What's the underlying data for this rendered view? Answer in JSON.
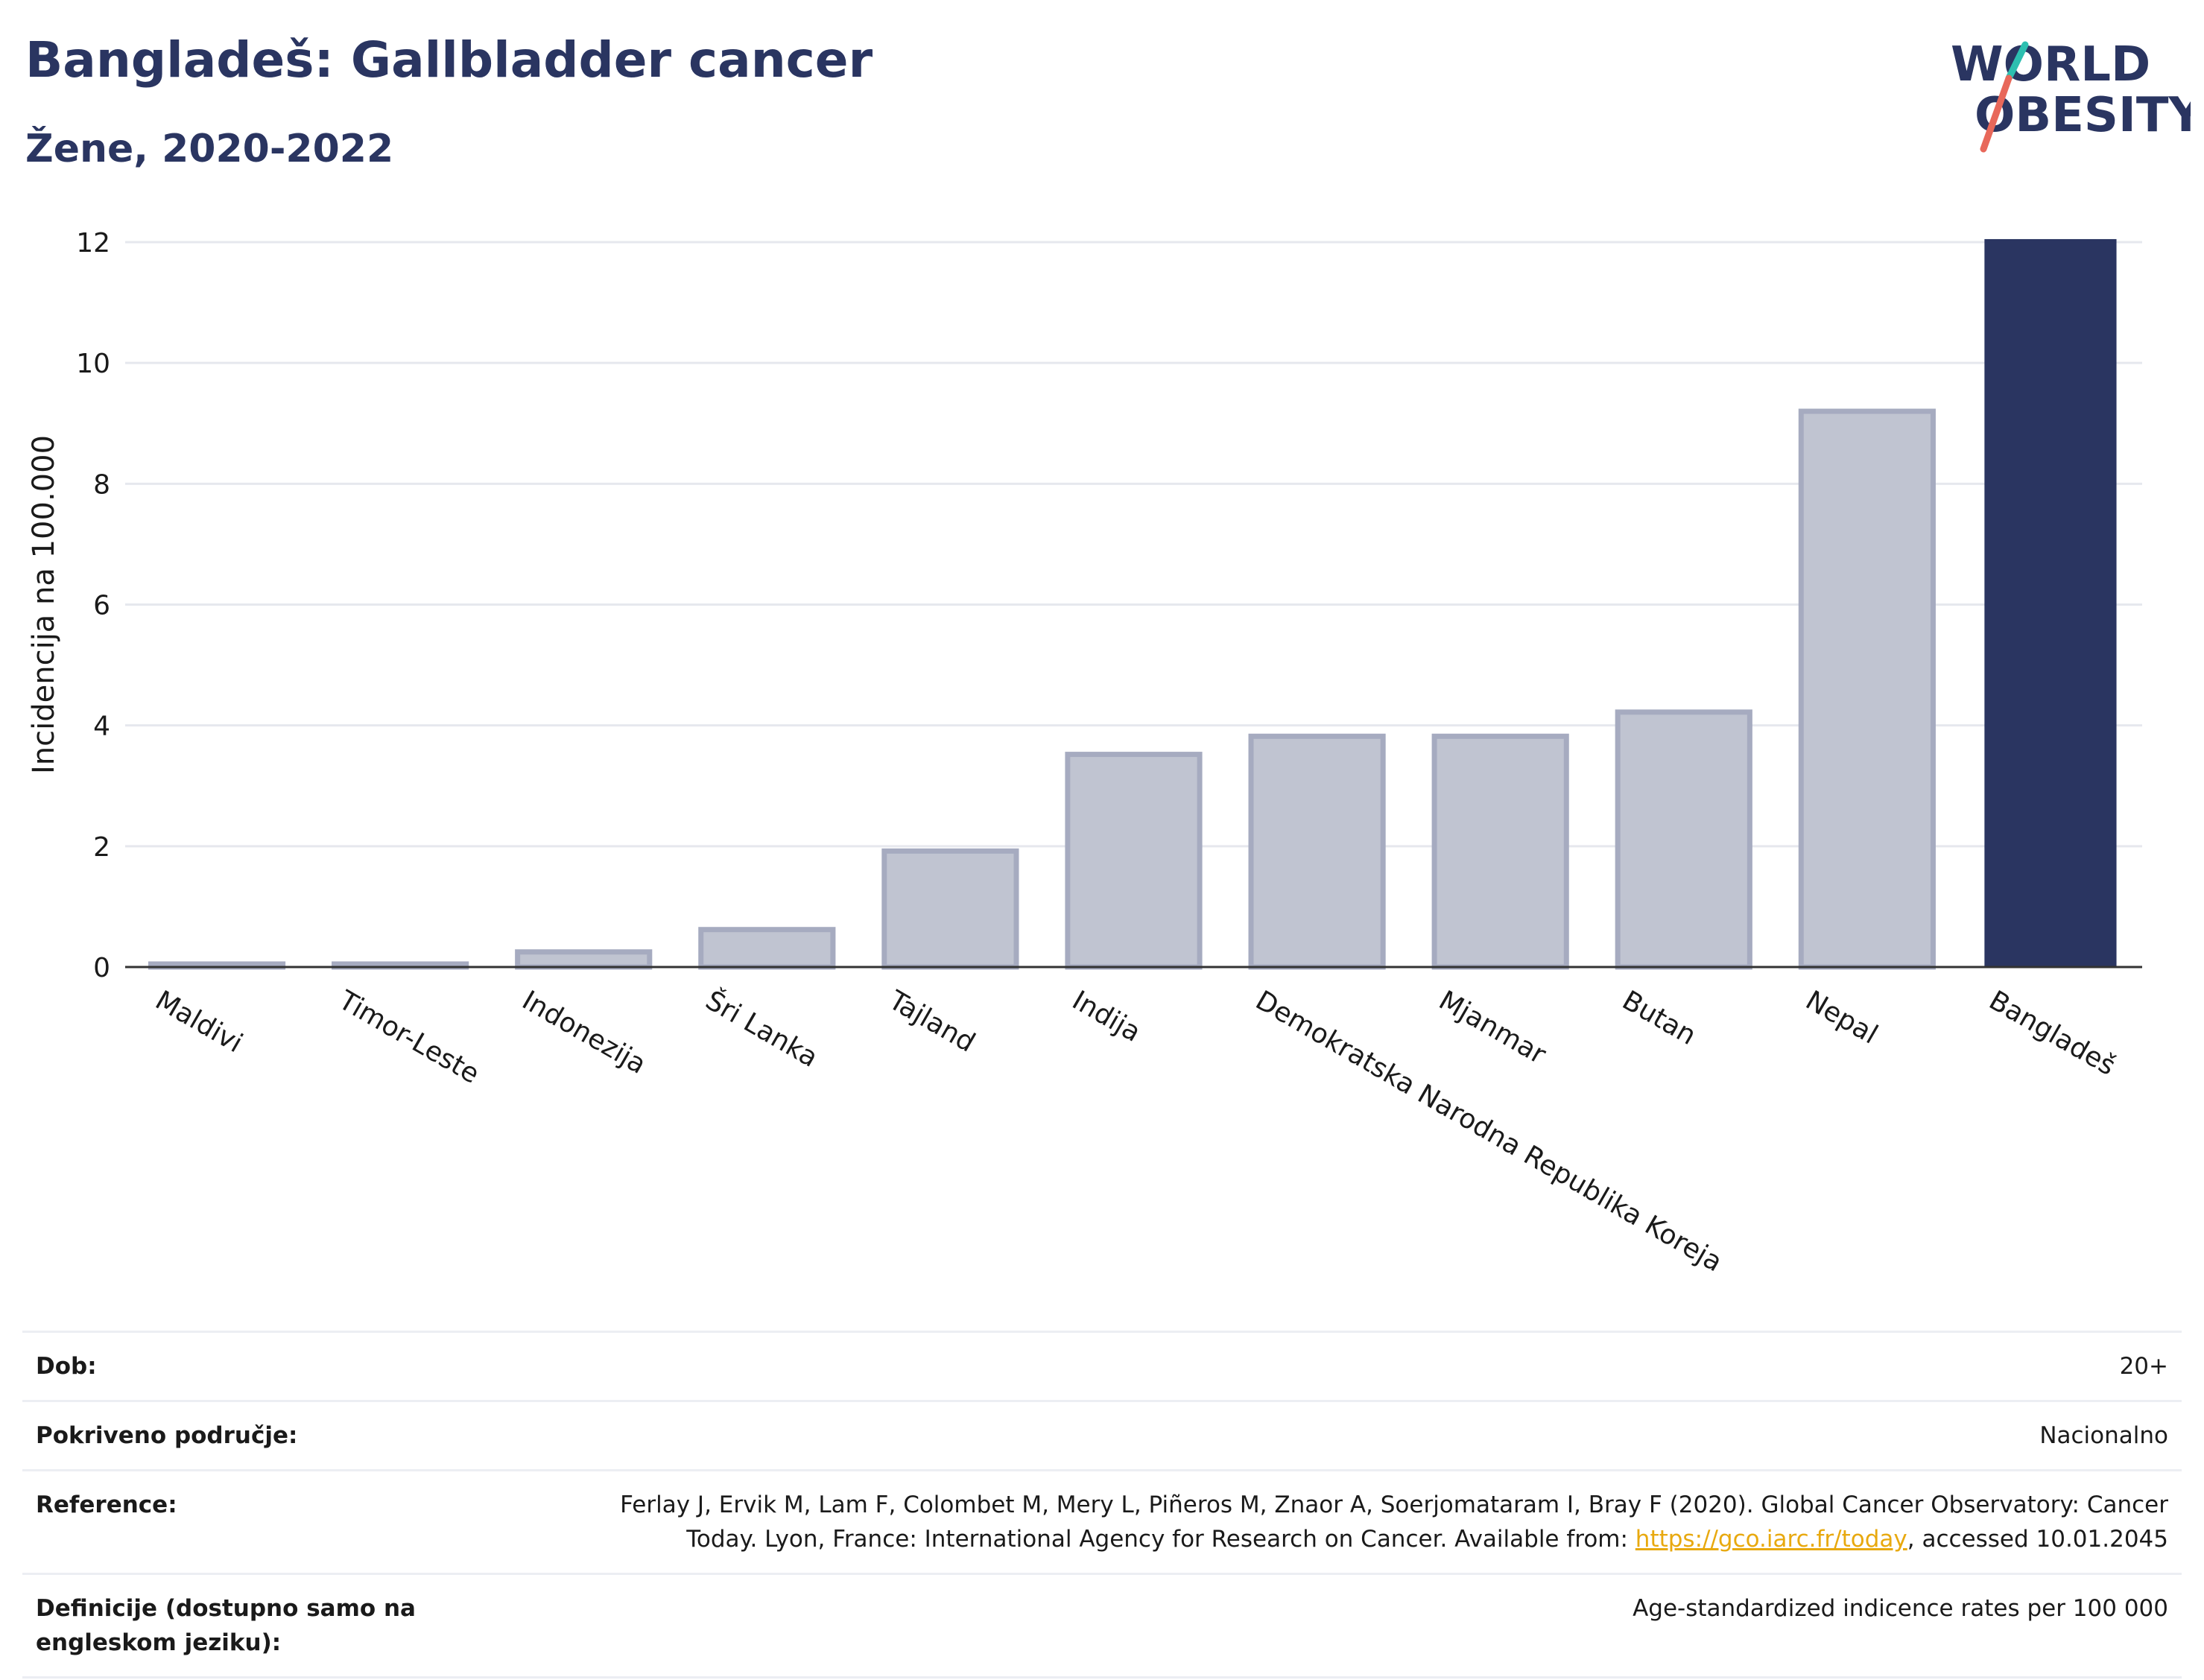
{
  "header": {
    "title": "Bangladeš: Gallbladder cancer",
    "subtitle": "Žene, 2020-2022"
  },
  "logo": {
    "line1": "WORLD",
    "line2": "OBESITY",
    "accent_colors": [
      "#2dbfb0",
      "#e8685a"
    ],
    "text_color": "#2a3561"
  },
  "chart_data": {
    "type": "bar",
    "categories": [
      "Maldivi",
      "Timor-Leste",
      "Indonezija",
      "Šri Lanka",
      "Tajland",
      "Indija",
      "Demokratska Narodna Republika Koreja",
      "Mjanmar",
      "Butan",
      "Nepal",
      "Bangladeš"
    ],
    "values": [
      0.05,
      0.05,
      0.25,
      0.62,
      1.92,
      3.52,
      3.82,
      3.82,
      4.22,
      9.2,
      12.05
    ],
    "highlight": "Bangladeš",
    "highlight_color": "#2a3561",
    "bar_color": "#c0c4d1",
    "bar_edge_color": "#a6abc0",
    "ylabel": "Incidencija na 100.000",
    "xlabel": "",
    "ylim": [
      0,
      12
    ],
    "yticks": [
      0,
      2,
      4,
      6,
      8,
      10,
      12
    ],
    "grid": true
  },
  "info": [
    {
      "key": "Dob:",
      "value": "20+"
    },
    {
      "key": "Pokriveno područje:",
      "value": "Nacionalno"
    },
    {
      "key": "Reference:",
      "value_line1": "Ferlay J, Ervik M, Lam F, Colombet M, Mery L, Piñeros M, Znaor A, Soerjomataram I, Bray F (2020). Global Cancer Observatory: Cancer",
      "value_line2_pre": "Today. Lyon, France: International Agency for Research on Cancer. Available from: ",
      "link": "https://gco.iarc.fr/today",
      "value_line2_post": ", accessed 10.01.2045"
    },
    {
      "key": "Definicije (dostupno samo na engleskom jeziku):",
      "value": "Age-standardized indicence rates per 100 000"
    }
  ]
}
